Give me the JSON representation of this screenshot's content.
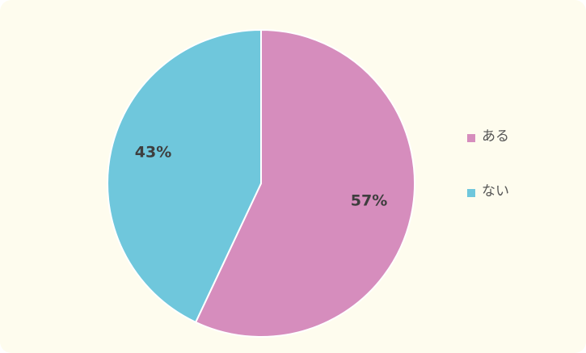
{
  "chart_data": {
    "type": "pie",
    "categories": [
      "ある",
      "ない"
    ],
    "values": [
      57,
      43
    ],
    "value_labels": [
      "57%",
      "43%"
    ],
    "colors": [
      "#d68dbd",
      "#6fc7dc"
    ]
  }
}
